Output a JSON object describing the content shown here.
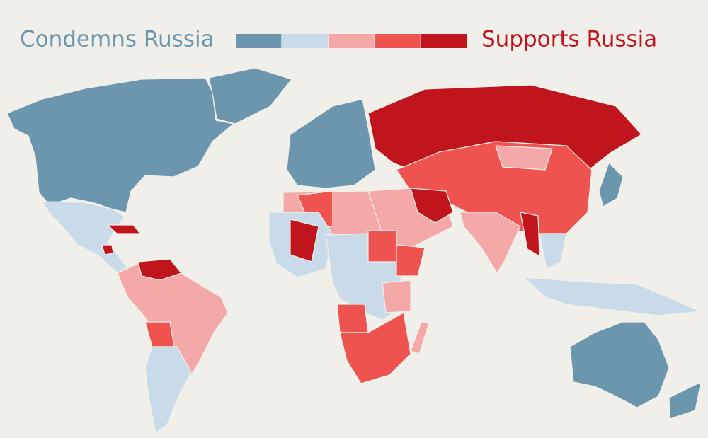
{
  "legend": {
    "left_label": "Condemns Russia",
    "right_label": "Supports Russia",
    "scale": [
      "#6b96ad",
      "#c9dbe8",
      "#f4a9a8",
      "#ee5350",
      "#c0151c"
    ]
  }
}
